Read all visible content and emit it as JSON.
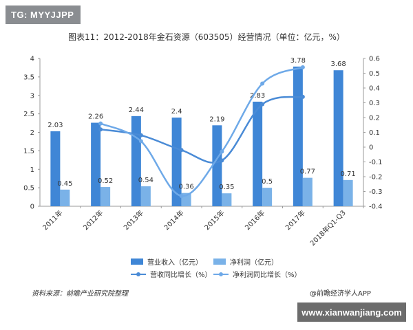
{
  "watermark_tag": "TG: MYYJJPP",
  "source_text": "资料来源：前瞻产业研究院整理",
  "brand_text": "@前瞻经济学人APP",
  "url_text": "www.xianwanjiang.com",
  "colors": {
    "revenue_bar": "#3f86d6",
    "profit_bar": "#7ab2e8",
    "revenue_growth_line": "#4a8bd6",
    "profit_growth_line": "#6ea9e8"
  },
  "chart_data": {
    "type": "bar",
    "title": "图表11：2012-2018年金石资源（603505）经营情况（单位：亿元，%）",
    "categories": [
      "2011年",
      "2012年",
      "2013年",
      "2014年",
      "2015年",
      "2016年",
      "2017年",
      "2018年Q1-Q3"
    ],
    "series": [
      {
        "name": "营业收入（亿元）",
        "kind": "bar",
        "axis": "left",
        "values": [
          2.03,
          2.26,
          2.44,
          2.4,
          2.19,
          2.83,
          3.78,
          3.68
        ],
        "labels": [
          "2.03",
          "2.26",
          "2.44",
          "2.4",
          "2.19",
          "2.83",
          "3.78",
          "3.68"
        ]
      },
      {
        "name": "净利润（亿元）",
        "kind": "bar",
        "axis": "left",
        "values": [
          0.45,
          0.52,
          0.54,
          0.36,
          0.35,
          0.5,
          0.77,
          0.71
        ],
        "labels": [
          "0.45",
          "0.52",
          "0.54",
          "0.36",
          "0.35",
          "0.5",
          "0.77",
          "0.71"
        ]
      },
      {
        "name": "营收同比增长（%）",
        "kind": "line",
        "axis": "right",
        "values": [
          null,
          0.12,
          0.08,
          -0.02,
          -0.09,
          0.29,
          0.34,
          null
        ]
      },
      {
        "name": "净利润同比增长（%）",
        "kind": "line",
        "axis": "right",
        "values": [
          null,
          0.16,
          0.04,
          -0.33,
          -0.03,
          0.43,
          0.54,
          null
        ]
      }
    ],
    "y_left": {
      "min": 0,
      "max": 4,
      "ticks": [
        "0",
        "0.5",
        "1",
        "1.5",
        "2",
        "2.5",
        "3",
        "3.5",
        "4"
      ]
    },
    "y_right": {
      "min": -0.4,
      "max": 0.6,
      "ticks": [
        "-0.4",
        "-0.3",
        "-0.2",
        "-0.1",
        "0",
        "0.1",
        "0.2",
        "0.3",
        "0.4",
        "0.5",
        "0.6"
      ]
    },
    "grid": false,
    "legend_position": "bottom"
  }
}
